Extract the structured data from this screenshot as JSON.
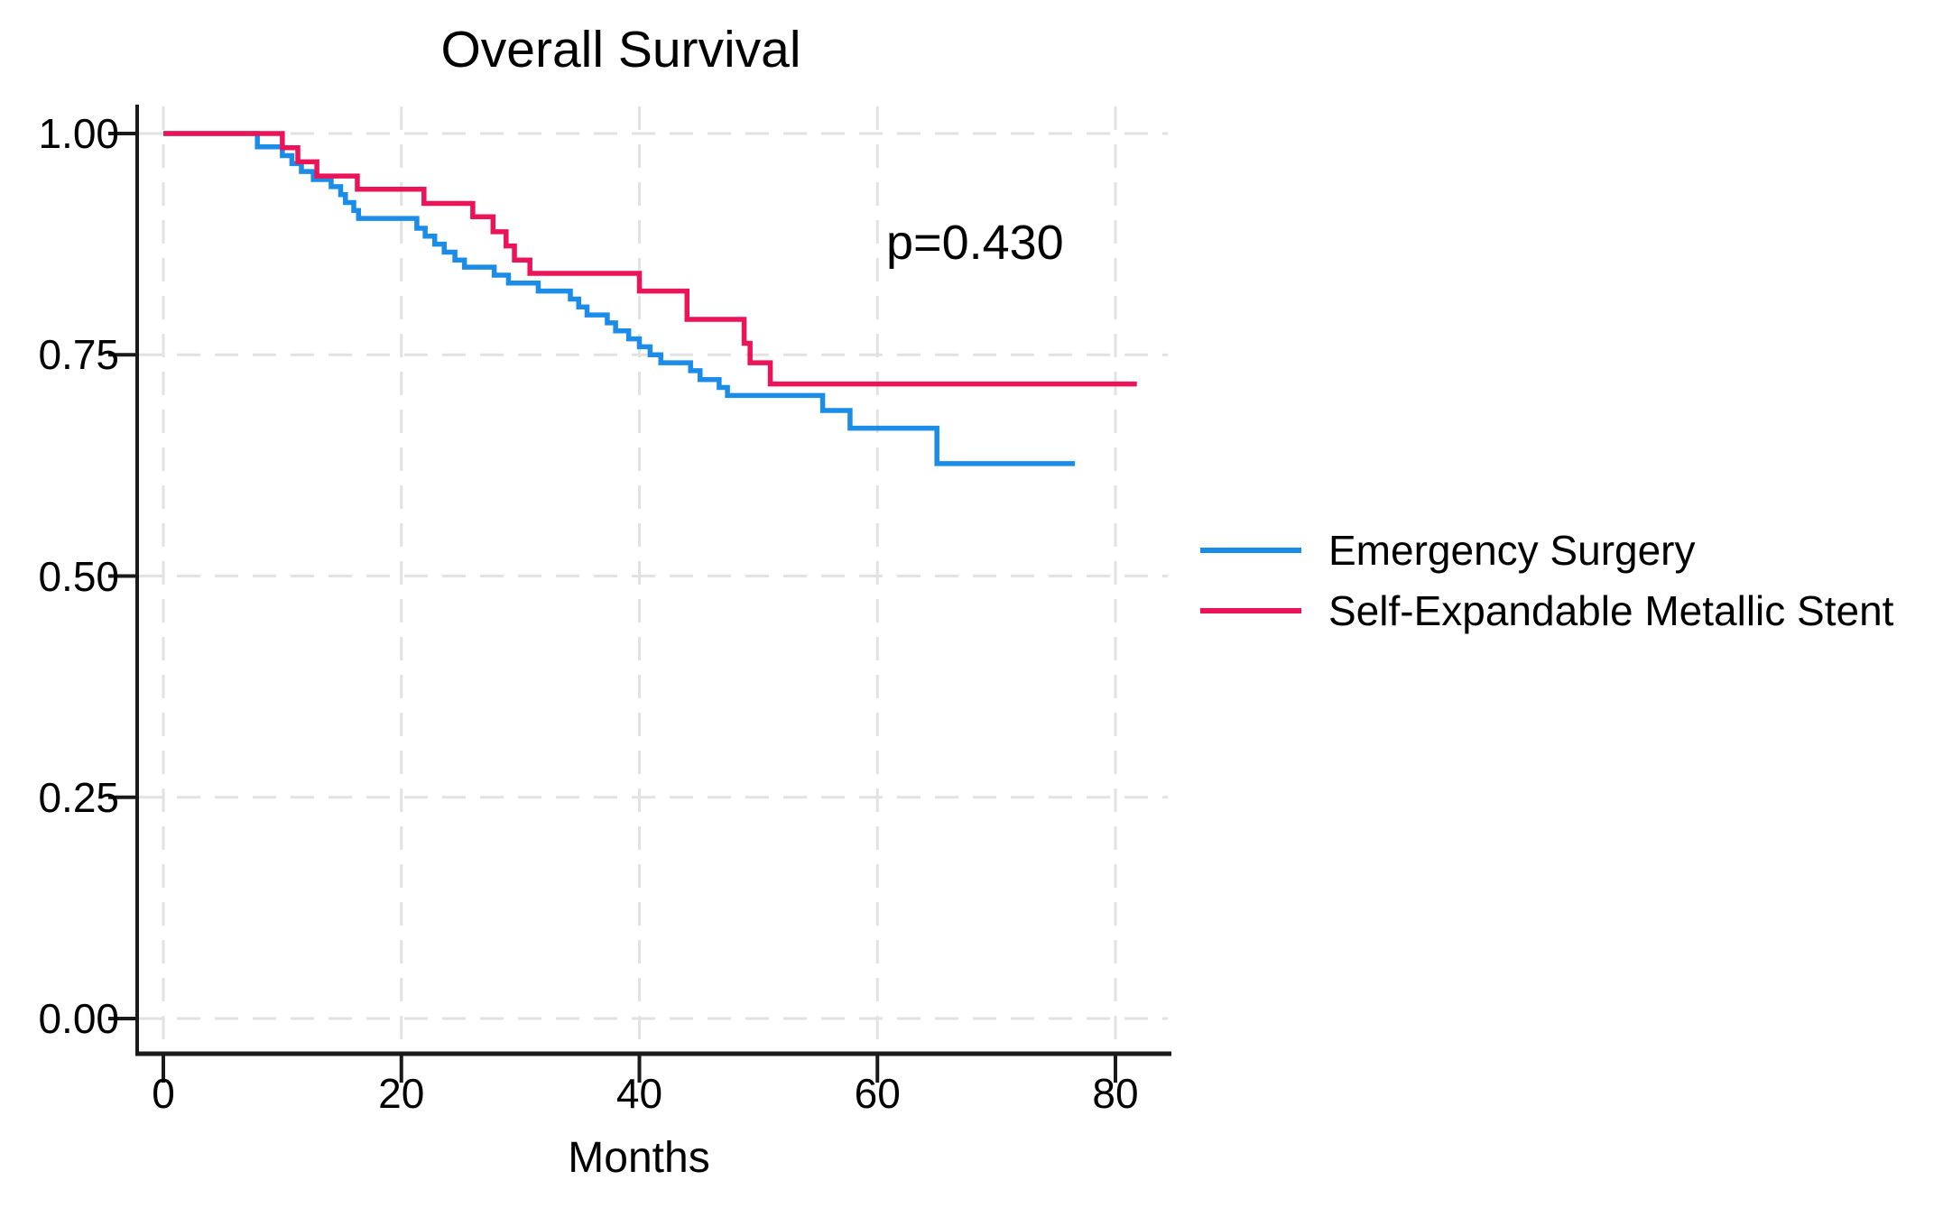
{
  "chart_data": {
    "type": "line",
    "variant": "kaplan-meier-step",
    "title": "Overall Survival",
    "xlabel": "Months",
    "ylabel": "",
    "annotation": {
      "text": "p=0.430",
      "p_value": 0.43
    },
    "x_axis": {
      "ticks": [
        0,
        20,
        40,
        60,
        80
      ],
      "range": [
        0,
        84.5
      ]
    },
    "y_axis": {
      "tick_labels": [
        "1.00",
        "0.75",
        "0.50",
        "0.25",
        "0.00"
      ],
      "tick_values": [
        1.0,
        0.75,
        0.5,
        0.25,
        0.0
      ],
      "range": [
        0,
        1.0
      ]
    },
    "grid": {
      "show": true,
      "style": "dashed",
      "color": "#e2e2e2"
    },
    "axis_color": "#1a1a1a",
    "legend": {
      "position": "right",
      "entries": [
        {
          "label": "Emergency Surgery",
          "color": "#1b8ce8"
        },
        {
          "label": "Self-Expandable Metallic Stent",
          "color": "#ec1458"
        }
      ]
    },
    "series": [
      {
        "name": "Emergency Surgery",
        "color": "#1b8ce8",
        "steps": [
          [
            0,
            1.0
          ],
          [
            7.9,
            0.985
          ],
          [
            10,
            0.975
          ],
          [
            10.8,
            0.966
          ],
          [
            11.6,
            0.957
          ],
          [
            12.6,
            0.948
          ],
          [
            14.1,
            0.94
          ],
          [
            14.9,
            0.931
          ],
          [
            15.3,
            0.922
          ],
          [
            16,
            0.913
          ],
          [
            16.4,
            0.904
          ],
          [
            21.3,
            0.893
          ],
          [
            22,
            0.884
          ],
          [
            22.8,
            0.875
          ],
          [
            23.6,
            0.866
          ],
          [
            24.5,
            0.857
          ],
          [
            25.3,
            0.849
          ],
          [
            27.8,
            0.84
          ],
          [
            29,
            0.831
          ],
          [
            31.5,
            0.822
          ],
          [
            34.2,
            0.813
          ],
          [
            34.9,
            0.804
          ],
          [
            35.6,
            0.795
          ],
          [
            37.3,
            0.786
          ],
          [
            38,
            0.777
          ],
          [
            39.1,
            0.768
          ],
          [
            40,
            0.759
          ],
          [
            40.9,
            0.75
          ],
          [
            41.8,
            0.741
          ],
          [
            44.3,
            0.732
          ],
          [
            45.1,
            0.722
          ],
          [
            46.7,
            0.713
          ],
          [
            47.4,
            0.704
          ],
          [
            55.4,
            0.687
          ],
          [
            57.7,
            0.667
          ],
          [
            65,
            0.627
          ],
          [
            76.6,
            0.627
          ]
        ]
      },
      {
        "name": "Self-Expandable Metallic Stent",
        "color": "#ec1458",
        "steps": [
          [
            0,
            1.0
          ],
          [
            10,
            0.984
          ],
          [
            11.3,
            0.968
          ],
          [
            12.9,
            0.952
          ],
          [
            16.3,
            0.937
          ],
          [
            21.9,
            0.921
          ],
          [
            26,
            0.906
          ],
          [
            27.7,
            0.889
          ],
          [
            28.8,
            0.873
          ],
          [
            29.5,
            0.857
          ],
          [
            30.8,
            0.842
          ],
          [
            40,
            0.822
          ],
          [
            44,
            0.79
          ],
          [
            48.8,
            0.763
          ],
          [
            49.3,
            0.741
          ],
          [
            51,
            0.717
          ],
          [
            81.8,
            0.717
          ]
        ]
      }
    ]
  }
}
